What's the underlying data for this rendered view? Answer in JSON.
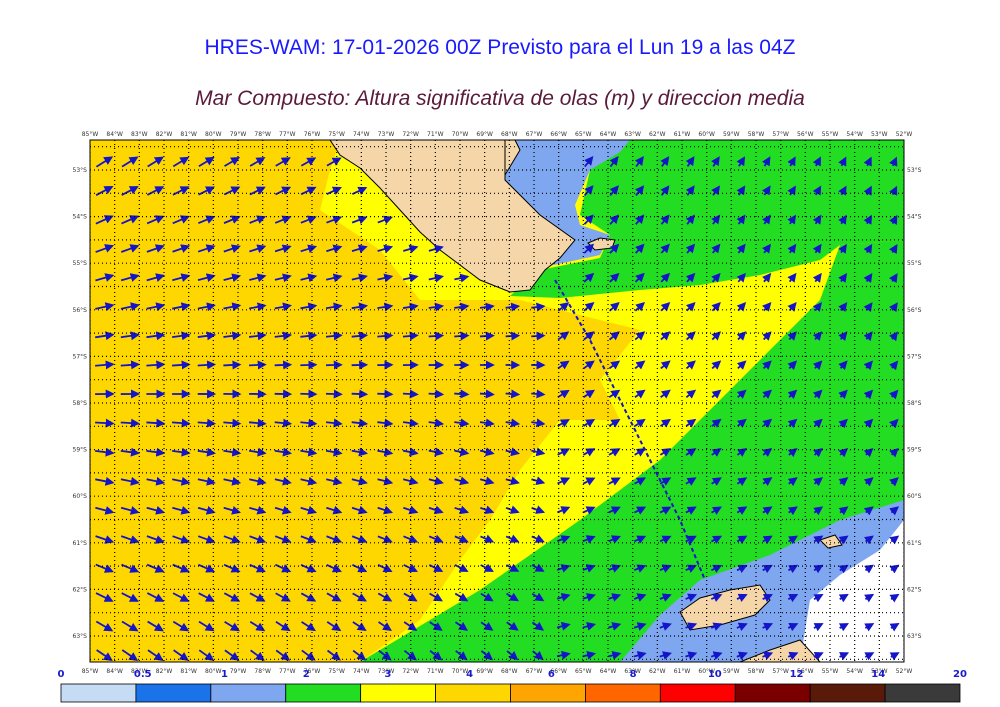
{
  "header": {
    "title": "HRES-WAM: 17-01-2026 00Z Previsto para el Lun 19 a las 04Z",
    "subtitle": "Mar Compuesto: Altura significativa de olas (m) y direccion media"
  },
  "map": {
    "lon_labels": [
      "85°W",
      "84°W",
      "83°W",
      "82°W",
      "81°W",
      "80°W",
      "79°W",
      "78°W",
      "77°W",
      "76°W",
      "75°W",
      "74°W",
      "73°W",
      "72°W",
      "71°W",
      "70°W",
      "69°W",
      "68°W",
      "67°W",
      "66°W",
      "65°W",
      "64°W",
      "63°W",
      "62°W",
      "61°W",
      "60°W",
      "59°W",
      "58°W",
      "57°W",
      "56°W",
      "55°W",
      "54°W",
      "53°W",
      "52°W"
    ],
    "lat_labels": [
      "53°S",
      "54°S",
      "55°S",
      "56°S",
      "57°S",
      "58°S",
      "59°S",
      "60°S",
      "61°S",
      "62°S",
      "63°S"
    ],
    "colors": {
      "land": "#f5d6a8",
      "coast": "#000000",
      "arrow": "#1414c8",
      "gridline": "#000000",
      "track": "#1414c8"
    }
  },
  "colorbar": {
    "labels": [
      "0",
      "0.5",
      "1",
      "2",
      "3",
      "4",
      "6",
      "8",
      "10",
      "12",
      "14",
      "20"
    ],
    "colors": [
      "#c6dcf5",
      "#1a73e8",
      "#7fa7f0",
      "#22dd22",
      "#ffff00",
      "#ffd700",
      "#ffa500",
      "#ff6600",
      "#ff0000",
      "#7a0000",
      "#5a1a0a",
      "#3a3a3a"
    ]
  }
}
